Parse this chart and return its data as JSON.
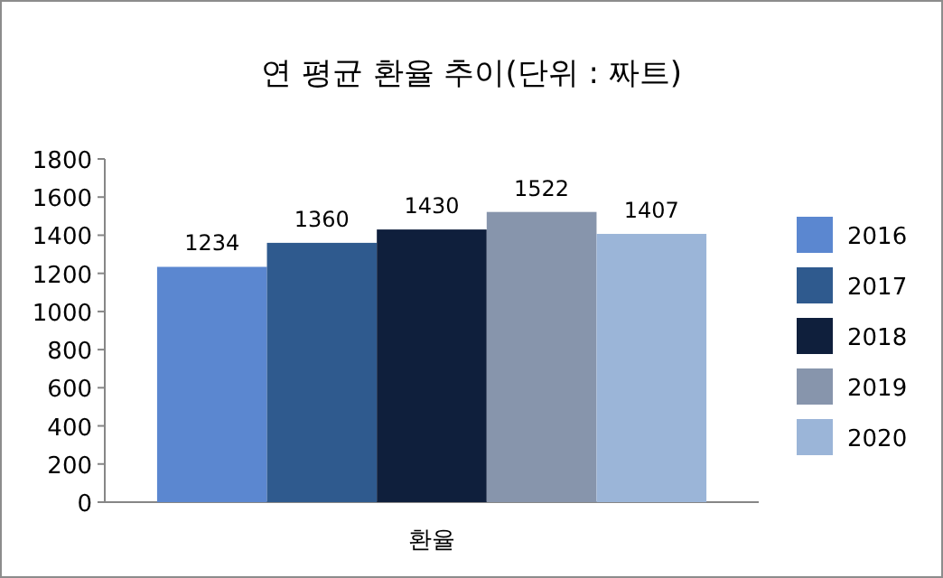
{
  "chart_data": {
    "type": "bar",
    "title": "연 평균 환율 추이(단위 : 짜트)",
    "categories": [
      "환율"
    ],
    "series": [
      {
        "name": "2016",
        "color": "#5b87d0",
        "values": [
          1234
        ]
      },
      {
        "name": "2017",
        "color": "#2f5a8e",
        "values": [
          1360
        ]
      },
      {
        "name": "2018",
        "color": "#0f1f3c",
        "values": [
          1430
        ]
      },
      {
        "name": "2019",
        "color": "#8795ac",
        "values": [
          1522
        ]
      },
      {
        "name": "2020",
        "color": "#9bb5d8",
        "values": [
          1407
        ]
      }
    ],
    "ylim": [
      0,
      1800
    ],
    "yticks": [
      0,
      200,
      400,
      600,
      800,
      1000,
      1200,
      1400,
      1600,
      1800
    ],
    "data_labels": true,
    "legend": "right"
  }
}
